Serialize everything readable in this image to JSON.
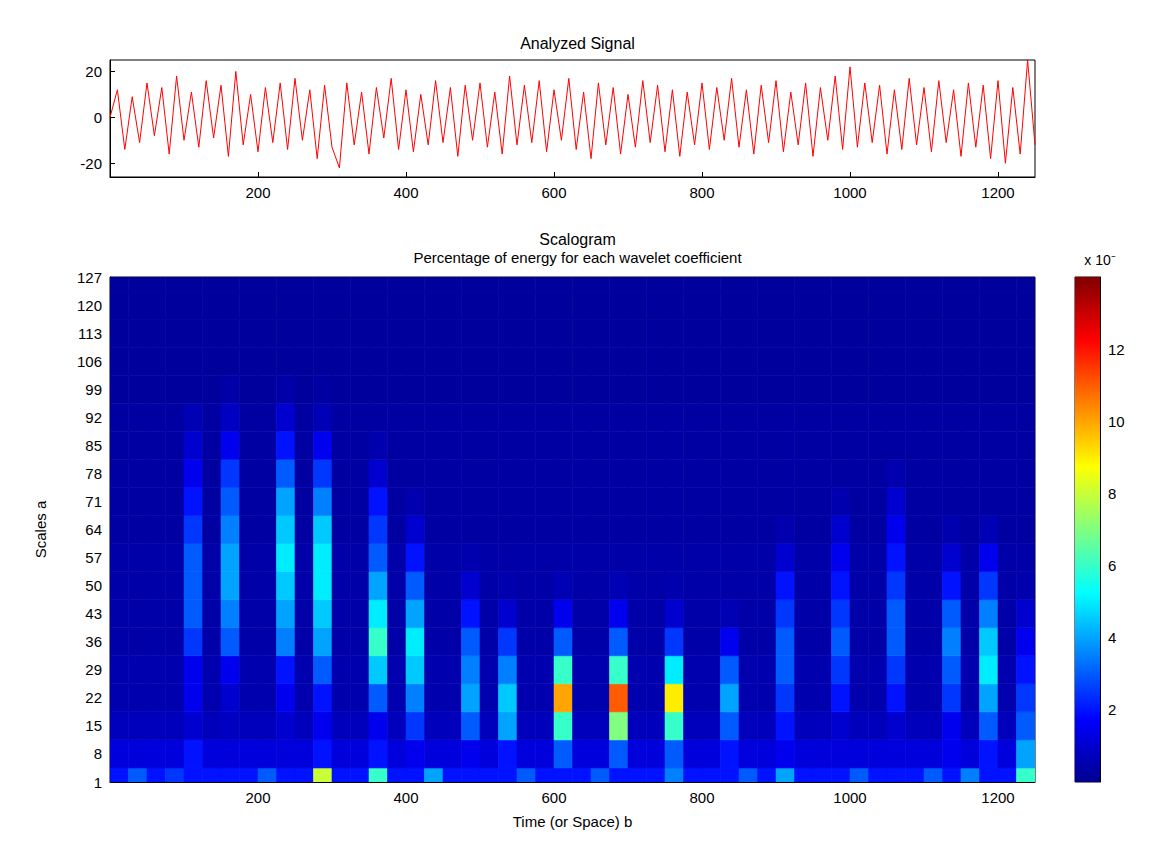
{
  "chart_data": [
    {
      "type": "line",
      "title": "Analyzed Signal",
      "color": "#ff0000",
      "grid": false,
      "x": [
        0,
        10,
        20,
        30,
        40,
        50,
        60,
        70,
        80,
        90,
        100,
        110,
        120,
        130,
        140,
        150,
        160,
        170,
        180,
        190,
        200,
        210,
        220,
        230,
        240,
        250,
        260,
        270,
        280,
        290,
        300,
        310,
        320,
        330,
        340,
        350,
        360,
        370,
        380,
        390,
        400,
        410,
        420,
        430,
        440,
        450,
        460,
        470,
        480,
        490,
        500,
        510,
        520,
        530,
        540,
        550,
        560,
        570,
        580,
        590,
        600,
        610,
        620,
        630,
        640,
        650,
        660,
        670,
        680,
        690,
        700,
        710,
        720,
        730,
        740,
        750,
        760,
        770,
        780,
        790,
        800,
        810,
        820,
        830,
        840,
        850,
        860,
        870,
        880,
        890,
        900,
        910,
        920,
        930,
        940,
        950,
        960,
        970,
        980,
        990,
        1000,
        1010,
        1020,
        1030,
        1040,
        1050,
        1060,
        1070,
        1080,
        1090,
        1100,
        1110,
        1120,
        1130,
        1140,
        1150,
        1160,
        1170,
        1180,
        1190,
        1200,
        1210,
        1220,
        1230,
        1240,
        1250
      ],
      "values": [
        0,
        12,
        -14,
        9,
        -11,
        15,
        -8,
        13,
        -16,
        18,
        -10,
        11,
        -13,
        16,
        -9,
        14,
        -17,
        20,
        -12,
        10,
        -15,
        13,
        -11,
        15,
        -14,
        17,
        -10,
        12,
        -18,
        14,
        -13,
        -22,
        15,
        -12,
        11,
        -16,
        13,
        -9,
        17,
        -14,
        12,
        -15,
        10,
        -12,
        16,
        -11,
        13,
        -17,
        14,
        -10,
        15,
        -13,
        11,
        -16,
        18,
        -12,
        14,
        -11,
        16,
        -15,
        12,
        -10,
        17,
        -14,
        11,
        -18,
        15,
        -12,
        13,
        -16,
        10,
        -13,
        16,
        -11,
        14,
        -15,
        12,
        -17,
        11,
        -12,
        15,
        -14,
        13,
        -10,
        17,
        -13,
        12,
        -16,
        14,
        -11,
        16,
        -15,
        11,
        -12,
        15,
        -17,
        13,
        -10,
        18,
        -14,
        22,
        -13,
        15,
        -11,
        14,
        -16,
        12,
        -14,
        17,
        -12,
        13,
        -15,
        16,
        -11,
        12,
        -17,
        15,
        -13,
        14,
        -18,
        16,
        -20,
        13,
        -16,
        25,
        -12
      ],
      "xlim": [
        0,
        1250
      ],
      "xticks": [
        200,
        400,
        600,
        800,
        1000,
        1200
      ],
      "ylim": [
        -26,
        25
      ],
      "yticks": [
        -20,
        0,
        20
      ]
    },
    {
      "type": "heatmap",
      "title": "Scalogram",
      "subtitle": "Percentage of energy for each wavelet coefficient",
      "x_label": "Time (or Space) b",
      "y_label": "Scales a",
      "grid": false,
      "xlim": [
        0,
        1250
      ],
      "xticks": [
        200,
        400,
        600,
        800,
        1000,
        1200
      ],
      "ylim": [
        1,
        127
      ],
      "yticks": [
        1,
        8,
        15,
        22,
        29,
        36,
        43,
        50,
        57,
        64,
        71,
        78,
        85,
        92,
        99,
        106,
        113,
        120,
        127
      ],
      "x": [
        12.5,
        37.5,
        62.5,
        87.5,
        112.5,
        137.5,
        162.5,
        187.5,
        212.5,
        237.5,
        262.5,
        287.5,
        312.5,
        337.5,
        362.5,
        387.5,
        412.5,
        437.5,
        462.5,
        487.5,
        512.5,
        537.5,
        562.5,
        587.5,
        612.5,
        637.5,
        662.5,
        687.5,
        712.5,
        737.5,
        762.5,
        787.5,
        812.5,
        837.5,
        862.5,
        887.5,
        912.5,
        937.5,
        962.5,
        987.5,
        1012.5,
        1037.5,
        1062.5,
        1087.5,
        1112.5,
        1137.5,
        1162.5,
        1187.5,
        1212.5,
        1237.5
      ],
      "y": [
        1,
        8,
        15,
        22,
        29,
        36,
        43,
        50,
        57,
        64,
        71,
        78,
        85,
        92,
        99,
        106,
        113,
        120,
        127
      ],
      "values": [
        [
          2,
          3,
          2,
          2.5,
          2,
          2,
          2,
          2,
          3,
          2,
          2,
          8,
          2,
          2,
          6,
          2,
          2,
          4,
          2,
          2,
          2,
          2,
          3,
          2,
          2,
          2,
          3,
          2,
          2,
          2,
          3.5,
          2,
          2,
          2,
          3,
          2,
          4,
          2,
          2,
          2,
          3,
          2,
          2,
          2,
          3,
          2,
          3.5,
          2,
          2,
          6
        ],
        [
          1.2,
          1.2,
          1.2,
          1.2,
          2,
          1.2,
          1.2,
          1.2,
          1.2,
          1.2,
          1.2,
          2,
          1.2,
          1.2,
          2,
          1.2,
          1.5,
          1.2,
          1.2,
          1.5,
          1.2,
          2,
          1.2,
          1.2,
          3,
          1.2,
          1.2,
          3,
          1.2,
          1.2,
          3,
          1.2,
          1.2,
          2,
          1.2,
          1.2,
          1.5,
          1.2,
          1.2,
          1.2,
          1.2,
          1.2,
          1.2,
          1.2,
          1.2,
          1.5,
          1.2,
          2,
          1.2,
          4
        ],
        [
          0.7,
          0.7,
          0.7,
          0.7,
          1,
          0.7,
          0.8,
          0.7,
          0.7,
          1,
          0.7,
          1.5,
          0.7,
          0.7,
          1.5,
          0.7,
          2.5,
          0.7,
          0.7,
          3,
          0.7,
          4,
          0.7,
          0.7,
          6,
          0.7,
          0.7,
          7,
          0.7,
          0.7,
          6,
          0.7,
          0.7,
          3,
          0.7,
          0.7,
          2,
          0.7,
          0.7,
          1,
          0.7,
          0.7,
          1,
          0.7,
          0.7,
          1.5,
          0.7,
          3,
          0.7,
          3
        ],
        [
          0.5,
          0.5,
          0.5,
          0.5,
          1.5,
          0.5,
          1,
          0.5,
          0.5,
          1.5,
          0.5,
          2,
          0.5,
          0.5,
          3,
          0.5,
          3.5,
          0.5,
          0.5,
          4,
          0.5,
          4.5,
          0.5,
          0.5,
          10,
          0.5,
          0.5,
          11,
          0.5,
          0.5,
          9,
          0.5,
          0.5,
          4,
          0.5,
          0.5,
          2.5,
          0.5,
          0.5,
          2,
          0.5,
          0.5,
          2,
          0.5,
          0.5,
          2.5,
          0.5,
          4,
          0.5,
          2.5
        ],
        [
          0.5,
          0.5,
          0.5,
          0.5,
          1.5,
          0.5,
          1.5,
          0.5,
          0.5,
          2,
          0.5,
          3,
          0.5,
          0.5,
          4.5,
          0.5,
          4.5,
          0.5,
          0.5,
          3.5,
          0.5,
          3.5,
          0.5,
          0.5,
          6,
          0.5,
          0.5,
          6,
          0.5,
          0.5,
          5,
          0.5,
          0.5,
          3,
          0.5,
          0.5,
          3,
          0.5,
          0.5,
          2.5,
          0.5,
          0.5,
          2.5,
          0.5,
          0.5,
          3,
          0.5,
          5,
          0.5,
          2
        ],
        [
          0.4,
          0.4,
          0.4,
          0.4,
          2.5,
          0.4,
          3,
          0.4,
          0.4,
          3.5,
          0.4,
          4,
          0.4,
          0.4,
          6,
          0.4,
          5,
          0.4,
          0.4,
          3,
          0.4,
          2.5,
          0.4,
          0.4,
          3,
          0.4,
          0.4,
          3,
          0.4,
          0.4,
          2.5,
          0.4,
          0.4,
          1.5,
          0.4,
          0.4,
          3,
          0.4,
          0.4,
          3,
          0.4,
          0.4,
          3,
          0.4,
          0.4,
          3.5,
          0.4,
          4.5,
          0.4,
          1.5
        ],
        [
          0.4,
          0.4,
          0.4,
          0.4,
          3,
          0.4,
          3.5,
          0.4,
          0.4,
          4,
          0.4,
          4.5,
          0.4,
          0.4,
          5,
          0.4,
          4,
          0.4,
          0.4,
          2,
          0.4,
          1,
          0.4,
          0.4,
          1.5,
          0.4,
          0.4,
          1.5,
          0.4,
          0.4,
          1,
          0.4,
          0.4,
          0.6,
          0.4,
          0.4,
          2.5,
          0.4,
          0.4,
          2.5,
          0.4,
          0.4,
          3,
          0.4,
          0.4,
          3,
          0.4,
          3.5,
          0.4,
          1
        ],
        [
          0.4,
          0.4,
          0.4,
          0.4,
          3,
          0.4,
          4,
          0.4,
          0.4,
          4.5,
          0.4,
          5,
          0.4,
          0.4,
          4,
          0.4,
          3,
          0.4,
          0.4,
          1,
          0.4,
          0.5,
          0.4,
          0.4,
          0.6,
          0.4,
          0.4,
          0.6,
          0.4,
          0.4,
          0.5,
          0.4,
          0.4,
          0.4,
          0.4,
          0.4,
          2,
          0.4,
          0.4,
          2,
          0.4,
          0.4,
          2.5,
          0.4,
          0.4,
          2,
          0.4,
          2.5,
          0.4,
          0.5
        ],
        [
          0.4,
          0.4,
          0.4,
          0.4,
          3,
          0.4,
          4,
          0.4,
          0.4,
          5,
          0.4,
          5,
          0.4,
          0.4,
          3,
          0.4,
          2,
          0.4,
          0.4,
          0.5,
          0.4,
          0.4,
          0.4,
          0.4,
          0.4,
          0.4,
          0.4,
          0.4,
          0.4,
          0.4,
          0.4,
          0.4,
          0.4,
          0.4,
          0.4,
          0.4,
          1,
          0.4,
          0.4,
          1.5,
          0.4,
          0.4,
          2,
          0.4,
          0.4,
          1,
          0.4,
          1.5,
          0.4,
          0.4
        ],
        [
          0.3,
          0.3,
          0.3,
          0.3,
          2.5,
          0.3,
          3.5,
          0.3,
          0.3,
          4.5,
          0.3,
          4.5,
          0.3,
          0.3,
          2.5,
          0.3,
          1,
          0.3,
          0.3,
          0.3,
          0.3,
          0.3,
          0.3,
          0.3,
          0.3,
          0.3,
          0.3,
          0.3,
          0.3,
          0.3,
          0.3,
          0.3,
          0.3,
          0.3,
          0.3,
          0.3,
          0.5,
          0.3,
          0.3,
          1,
          0.3,
          0.3,
          1.5,
          0.3,
          0.3,
          0.5,
          0.3,
          0.6,
          0.3,
          0.3
        ],
        [
          0.3,
          0.3,
          0.3,
          0.3,
          2,
          0.3,
          3,
          0.3,
          0.3,
          4,
          0.3,
          3.5,
          0.3,
          0.3,
          2,
          0.3,
          0.5,
          0.3,
          0.3,
          0.3,
          0.3,
          0.3,
          0.3,
          0.3,
          0.3,
          0.3,
          0.3,
          0.3,
          0.3,
          0.3,
          0.3,
          0.3,
          0.3,
          0.3,
          0.3,
          0.3,
          0.3,
          0.3,
          0.3,
          0.5,
          0.3,
          0.3,
          1,
          0.3,
          0.3,
          0.3,
          0.3,
          0.3,
          0.3,
          0.3
        ],
        [
          0.3,
          0.3,
          0.3,
          0.3,
          1.5,
          0.3,
          2.5,
          0.3,
          0.3,
          3,
          0.3,
          2.5,
          0.3,
          0.3,
          1,
          0.3,
          0.3,
          0.3,
          0.3,
          0.3,
          0.3,
          0.3,
          0.3,
          0.3,
          0.3,
          0.3,
          0.3,
          0.3,
          0.3,
          0.3,
          0.3,
          0.3,
          0.3,
          0.3,
          0.3,
          0.3,
          0.3,
          0.3,
          0.3,
          0.3,
          0.3,
          0.3,
          0.5,
          0.3,
          0.3,
          0.3,
          0.3,
          0.3,
          0.3,
          0.3
        ],
        [
          0.3,
          0.3,
          0.3,
          0.3,
          1,
          0.3,
          1.5,
          0.3,
          0.3,
          2,
          0.3,
          1.5,
          0.3,
          0.3,
          0.5,
          0.3,
          0.3,
          0.3,
          0.3,
          0.3,
          0.3,
          0.3,
          0.3,
          0.3,
          0.3,
          0.3,
          0.3,
          0.3,
          0.3,
          0.3,
          0.3,
          0.3,
          0.3,
          0.3,
          0.3,
          0.3,
          0.3,
          0.3,
          0.3,
          0.3,
          0.3,
          0.3,
          0.3,
          0.3,
          0.3,
          0.3,
          0.3,
          0.3,
          0.3,
          0.3
        ],
        [
          0.3,
          0.3,
          0.3,
          0.3,
          0.6,
          0.3,
          0.8,
          0.3,
          0.3,
          1,
          0.3,
          0.6,
          0.3,
          0.3,
          0.3,
          0.3,
          0.3,
          0.3,
          0.3,
          0.3,
          0.3,
          0.3,
          0.3,
          0.3,
          0.3,
          0.3,
          0.3,
          0.3,
          0.3,
          0.3,
          0.3,
          0.3,
          0.3,
          0.3,
          0.3,
          0.3,
          0.3,
          0.3,
          0.3,
          0.3,
          0.3,
          0.3,
          0.3,
          0.3,
          0.3,
          0.3,
          0.3,
          0.3,
          0.3,
          0.3
        ],
        [
          0.2,
          0.2,
          0.2,
          0.2,
          0.2,
          0.2,
          0.4,
          0.2,
          0.2,
          0.4,
          0.2,
          0.3,
          0.2,
          0.2,
          0.2,
          0.2,
          0.2,
          0.2,
          0.2,
          0.2,
          0.2,
          0.2,
          0.2,
          0.2,
          0.2,
          0.2,
          0.2,
          0.2,
          0.2,
          0.2,
          0.2,
          0.2,
          0.2,
          0.2,
          0.2,
          0.2,
          0.2,
          0.2,
          0.2,
          0.2,
          0.2,
          0.2,
          0.2,
          0.2,
          0.2,
          0.2,
          0.2,
          0.2,
          0.2,
          0.2
        ],
        [
          0.2,
          0.2,
          0.2,
          0.2,
          0.2,
          0.2,
          0.2,
          0.2,
          0.2,
          0.2,
          0.2,
          0.2,
          0.2,
          0.2,
          0.2,
          0.2,
          0.2,
          0.2,
          0.2,
          0.2,
          0.2,
          0.2,
          0.2,
          0.2,
          0.2,
          0.2,
          0.2,
          0.2,
          0.2,
          0.2,
          0.2,
          0.2,
          0.2,
          0.2,
          0.2,
          0.2,
          0.2,
          0.2,
          0.2,
          0.2,
          0.2,
          0.2,
          0.2,
          0.2,
          0.2,
          0.2,
          0.2,
          0.2,
          0.2,
          0.2
        ],
        [
          0.2,
          0.2,
          0.2,
          0.2,
          0.2,
          0.2,
          0.2,
          0.2,
          0.2,
          0.2,
          0.2,
          0.2,
          0.2,
          0.2,
          0.2,
          0.2,
          0.2,
          0.2,
          0.2,
          0.2,
          0.2,
          0.2,
          0.2,
          0.2,
          0.2,
          0.2,
          0.2,
          0.2,
          0.2,
          0.2,
          0.2,
          0.2,
          0.2,
          0.2,
          0.2,
          0.2,
          0.2,
          0.2,
          0.2,
          0.2,
          0.2,
          0.2,
          0.2,
          0.2,
          0.2,
          0.2,
          0.2,
          0.2,
          0.2,
          0.2
        ],
        [
          0.2,
          0.2,
          0.2,
          0.2,
          0.2,
          0.2,
          0.2,
          0.2,
          0.2,
          0.2,
          0.2,
          0.2,
          0.2,
          0.2,
          0.2,
          0.2,
          0.2,
          0.2,
          0.2,
          0.2,
          0.2,
          0.2,
          0.2,
          0.2,
          0.2,
          0.2,
          0.2,
          0.2,
          0.2,
          0.2,
          0.2,
          0.2,
          0.2,
          0.2,
          0.2,
          0.2,
          0.2,
          0.2,
          0.2,
          0.2,
          0.2,
          0.2,
          0.2,
          0.2,
          0.2,
          0.2,
          0.2,
          0.2,
          0.2,
          0.2
        ],
        [
          0.2,
          0.2,
          0.2,
          0.2,
          0.2,
          0.2,
          0.2,
          0.2,
          0.2,
          0.2,
          0.2,
          0.2,
          0.2,
          0.2,
          0.2,
          0.2,
          0.2,
          0.2,
          0.2,
          0.2,
          0.2,
          0.2,
          0.2,
          0.2,
          0.2,
          0.2,
          0.2,
          0.2,
          0.2,
          0.2,
          0.2,
          0.2,
          0.2,
          0.2,
          0.2,
          0.2,
          0.2,
          0.2,
          0.2,
          0.2,
          0.2,
          0.2,
          0.2,
          0.2,
          0.2,
          0.2,
          0.2,
          0.2,
          0.2,
          0.2
        ]
      ],
      "colorbar": {
        "label": "x 10⁻",
        "lim": [
          0,
          14
        ],
        "ticks": [
          2,
          4,
          6,
          8,
          10,
          12
        ]
      }
    }
  ]
}
